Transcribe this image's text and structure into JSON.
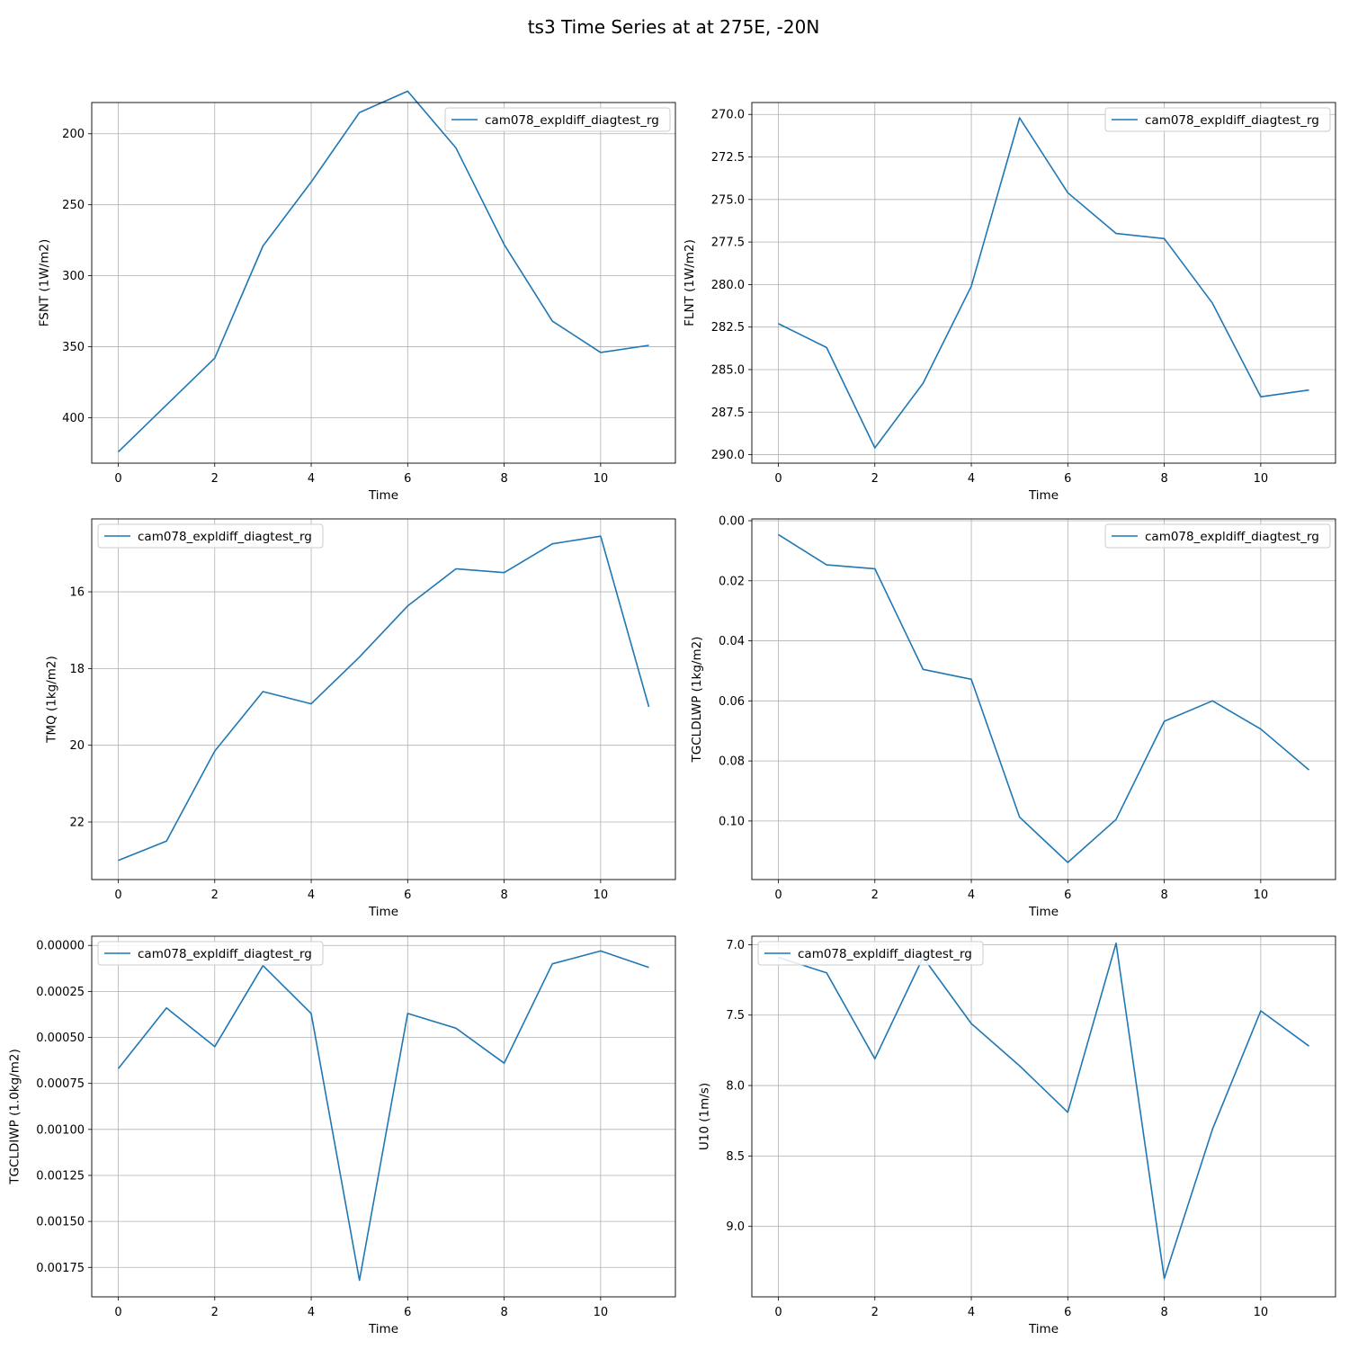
{
  "suptitle": "ts3 Time Series at at 275E, -20N",
  "colors": {
    "series": "#1f77b4",
    "grid": "#b0b0b0",
    "axes": "#000000",
    "legend_border": "#cccccc"
  },
  "chart_data": [
    {
      "type": "line",
      "xlabel": "Time",
      "ylabel": "FSNT (1W/m2)",
      "y_inverted": true,
      "ylim": [
        178,
        432
      ],
      "xlim": [
        -0.55,
        11.55
      ],
      "yticks": [
        200,
        250,
        300,
        350,
        400
      ],
      "ytick_labels": [
        "200",
        "250",
        "300",
        "350",
        "400"
      ],
      "xticks": [
        0,
        2,
        4,
        6,
        8,
        10
      ],
      "xtick_labels": [
        "0",
        "2",
        "4",
        "6",
        "8",
        "10"
      ],
      "grid": true,
      "legend_position": "upper right",
      "series": [
        {
          "name": "cam078_expldiff_diagtest_rg",
          "x": [
            0,
            1,
            2,
            3,
            4,
            5,
            6,
            7,
            8,
            9,
            10,
            11
          ],
          "y": [
            424,
            391,
            358,
            279,
            234,
            185,
            170,
            210,
            278,
            332,
            354,
            349
          ]
        }
      ]
    },
    {
      "type": "line",
      "xlabel": "Time",
      "ylabel": "FLNT (1W/m2)",
      "y_inverted": true,
      "ylim": [
        269.3,
        290.5
      ],
      "xlim": [
        -0.55,
        11.55
      ],
      "yticks": [
        270.0,
        272.5,
        275.0,
        277.5,
        280.0,
        282.5,
        285.0,
        287.5,
        290.0
      ],
      "ytick_labels": [
        "270.0",
        "272.5",
        "275.0",
        "277.5",
        "280.0",
        "282.5",
        "285.0",
        "287.5",
        "290.0"
      ],
      "xticks": [
        0,
        2,
        4,
        6,
        8,
        10
      ],
      "xtick_labels": [
        "0",
        "2",
        "4",
        "6",
        "8",
        "10"
      ],
      "grid": true,
      "legend_position": "upper right",
      "series": [
        {
          "name": "cam078_expldiff_diagtest_rg",
          "x": [
            0,
            1,
            2,
            3,
            4,
            5,
            6,
            7,
            8,
            9,
            10,
            11
          ],
          "y": [
            282.3,
            283.7,
            289.6,
            285.8,
            280.1,
            270.2,
            274.6,
            277.0,
            277.3,
            281.1,
            286.6,
            286.2
          ]
        }
      ]
    },
    {
      "type": "line",
      "xlabel": "Time",
      "ylabel": "TMQ (1kg/m2)",
      "y_inverted": true,
      "ylim": [
        14.1,
        23.5
      ],
      "xlim": [
        -0.55,
        11.55
      ],
      "yticks": [
        16,
        18,
        20,
        22
      ],
      "ytick_labels": [
        "16",
        "18",
        "20",
        "22"
      ],
      "xticks": [
        0,
        2,
        4,
        6,
        8,
        10
      ],
      "xtick_labels": [
        "0",
        "2",
        "4",
        "6",
        "8",
        "10"
      ],
      "grid": true,
      "legend_position": "upper left",
      "series": [
        {
          "name": "cam078_expldiff_diagtest_rg",
          "x": [
            0,
            1,
            2,
            3,
            4,
            5,
            6,
            7,
            8,
            9,
            10,
            11
          ],
          "y": [
            23.0,
            22.5,
            20.15,
            18.6,
            18.92,
            17.7,
            16.37,
            15.4,
            15.5,
            14.75,
            14.55,
            19.0
          ]
        }
      ]
    },
    {
      "type": "line",
      "xlabel": "Time",
      "ylabel": "TGCLDLWP (1kg/m2)",
      "y_inverted": true,
      "ylim": [
        -0.0006,
        0.1195
      ],
      "xlim": [
        -0.55,
        11.55
      ],
      "yticks": [
        0.0,
        0.02,
        0.04,
        0.06,
        0.08,
        0.1
      ],
      "ytick_labels": [
        "0.00",
        "0.02",
        "0.04",
        "0.06",
        "0.08",
        "0.10"
      ],
      "xticks": [
        0,
        2,
        4,
        6,
        8,
        10
      ],
      "xtick_labels": [
        "0",
        "2",
        "4",
        "6",
        "8",
        "10"
      ],
      "grid": true,
      "legend_position": "upper right",
      "series": [
        {
          "name": "cam078_expldiff_diagtest_rg",
          "x": [
            0,
            1,
            2,
            3,
            4,
            5,
            6,
            7,
            8,
            9,
            10,
            11
          ],
          "y": [
            0.0046,
            0.0147,
            0.016,
            0.0495,
            0.0528,
            0.0987,
            0.1138,
            0.0995,
            0.0668,
            0.06,
            0.0694,
            0.083
          ]
        }
      ]
    },
    {
      "type": "line",
      "xlabel": "Time",
      "ylabel": "TGCLDIWP (1.0kg/m2)",
      "y_inverted": true,
      "ylim": [
        -5e-05,
        0.00191
      ],
      "xlim": [
        -0.55,
        11.55
      ],
      "yticks": [
        0.0,
        0.00025,
        0.0005,
        0.00075,
        0.001,
        0.00125,
        0.0015,
        0.00175
      ],
      "ytick_labels": [
        "0.00000",
        "0.00025",
        "0.00050",
        "0.00075",
        "0.00100",
        "0.00125",
        "0.00150",
        "0.00175"
      ],
      "xticks": [
        0,
        2,
        4,
        6,
        8,
        10
      ],
      "xtick_labels": [
        "0",
        "2",
        "4",
        "6",
        "8",
        "10"
      ],
      "grid": true,
      "legend_position": "upper left",
      "series": [
        {
          "name": "cam078_expldiff_diagtest_rg",
          "x": [
            0,
            1,
            2,
            3,
            4,
            5,
            6,
            7,
            8,
            9,
            10,
            11
          ],
          "y": [
            0.00067,
            0.00034,
            0.00055,
            0.00011,
            0.00037,
            0.00182,
            0.00037,
            0.00045,
            0.00064,
            0.0001,
            3e-05,
            0.00012
          ]
        }
      ]
    },
    {
      "type": "line",
      "xlabel": "Time",
      "ylabel": "U10 (1m/s)",
      "y_inverted": true,
      "ylim": [
        6.94,
        9.5
      ],
      "xlim": [
        -0.55,
        11.55
      ],
      "yticks": [
        7.0,
        7.5,
        8.0,
        8.5,
        9.0
      ],
      "ytick_labels": [
        "7.0",
        "7.5",
        "8.0",
        "8.5",
        "9.0"
      ],
      "xticks": [
        0,
        2,
        4,
        6,
        8,
        10
      ],
      "xtick_labels": [
        "0",
        "2",
        "4",
        "6",
        "8",
        "10"
      ],
      "grid": true,
      "legend_position": "upper left",
      "series": [
        {
          "name": "cam078_expldiff_diagtest_rg",
          "x": [
            0,
            1,
            2,
            3,
            4,
            5,
            6,
            7,
            8,
            9,
            10,
            11
          ],
          "y": [
            7.09,
            7.2,
            7.81,
            7.09,
            7.56,
            7.86,
            8.19,
            6.99,
            9.37,
            8.31,
            7.47,
            7.72
          ]
        }
      ]
    }
  ]
}
